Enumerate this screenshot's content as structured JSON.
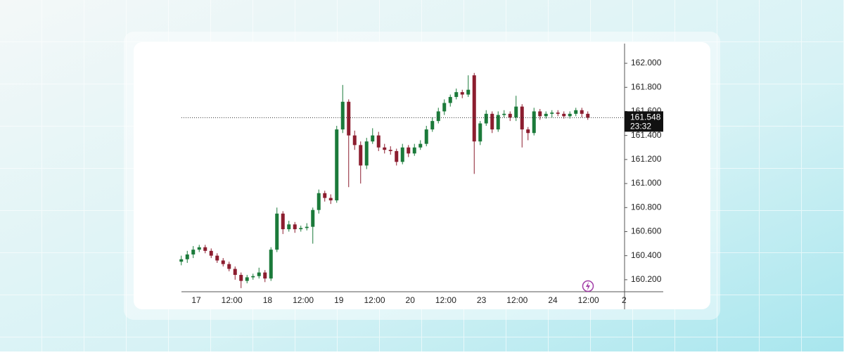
{
  "chart_data": {
    "type": "candlestick",
    "x_labels": [
      "17",
      "12:00",
      "18",
      "12:00",
      "19",
      "12:00",
      "20",
      "12:00",
      "23",
      "12:00",
      "24",
      "12:00",
      "2"
    ],
    "open": [
      160.35,
      160.37,
      160.41,
      160.45,
      160.47,
      160.44,
      160.4,
      160.36,
      160.33,
      160.29,
      160.24,
      160.19,
      160.22,
      160.23,
      160.26,
      160.21,
      160.45,
      160.75,
      160.62,
      160.66,
      160.62,
      160.63,
      160.64,
      160.78,
      160.92,
      160.88,
      160.86,
      161.45,
      161.68,
      161.4,
      161.32,
      161.15,
      161.35,
      161.4,
      161.3,
      161.28,
      161.27,
      161.18,
      161.3,
      161.25,
      161.3,
      161.33,
      161.45,
      161.52,
      161.6,
      161.67,
      161.72,
      161.76,
      161.74,
      161.9,
      161.35,
      161.5,
      161.58,
      161.45,
      161.57,
      161.58,
      161.55,
      161.64,
      161.45,
      161.42,
      161.6,
      161.56,
      161.58,
      161.59,
      161.58,
      161.56,
      161.58,
      161.61,
      161.58
    ],
    "high": [
      160.4,
      160.44,
      160.48,
      160.49,
      160.49,
      160.46,
      160.42,
      160.38,
      160.35,
      160.31,
      160.26,
      160.24,
      160.25,
      160.3,
      160.28,
      160.47,
      160.8,
      160.77,
      160.69,
      160.68,
      160.65,
      160.67,
      160.8,
      160.95,
      160.94,
      160.91,
      161.48,
      161.82,
      161.7,
      161.44,
      161.35,
      161.38,
      161.46,
      161.43,
      161.33,
      161.31,
      161.29,
      161.33,
      161.32,
      161.33,
      161.36,
      161.48,
      161.55,
      161.63,
      161.7,
      161.74,
      161.79,
      161.78,
      161.9,
      161.92,
      161.52,
      161.61,
      161.6,
      161.6,
      161.61,
      161.6,
      161.73,
      161.66,
      161.47,
      161.63,
      161.62,
      161.6,
      161.61,
      161.61,
      161.6,
      161.6,
      161.63,
      161.63,
      161.6
    ],
    "low": [
      160.32,
      160.34,
      160.38,
      160.43,
      160.42,
      160.38,
      160.34,
      160.31,
      160.27,
      160.2,
      160.13,
      160.17,
      160.2,
      160.21,
      160.18,
      160.19,
      160.43,
      160.58,
      160.6,
      160.59,
      160.6,
      160.61,
      160.5,
      160.75,
      160.85,
      160.83,
      160.84,
      161.42,
      160.97,
      161.28,
      161.0,
      161.12,
      161.33,
      161.27,
      161.25,
      161.24,
      161.15,
      161.16,
      161.22,
      161.23,
      161.28,
      161.31,
      161.43,
      161.5,
      161.57,
      161.64,
      161.7,
      161.71,
      161.72,
      161.08,
      161.32,
      161.48,
      161.42,
      161.43,
      161.55,
      161.52,
      161.52,
      161.3,
      161.36,
      161.4,
      161.53,
      161.54,
      161.55,
      161.56,
      161.54,
      161.54,
      161.56,
      161.55,
      161.53
    ],
    "close": [
      160.37,
      160.41,
      160.45,
      160.47,
      160.44,
      160.4,
      160.36,
      160.33,
      160.29,
      160.24,
      160.19,
      160.22,
      160.23,
      160.26,
      160.21,
      160.45,
      160.75,
      160.62,
      160.66,
      160.62,
      160.63,
      160.64,
      160.78,
      160.92,
      160.88,
      160.86,
      161.45,
      161.68,
      161.4,
      161.32,
      161.15,
      161.35,
      161.4,
      161.3,
      161.28,
      161.27,
      161.18,
      161.3,
      161.25,
      161.3,
      161.33,
      161.45,
      161.52,
      161.6,
      161.67,
      161.72,
      161.76,
      161.74,
      161.78,
      161.35,
      161.5,
      161.58,
      161.45,
      161.57,
      161.58,
      161.55,
      161.64,
      161.45,
      161.42,
      161.6,
      161.56,
      161.58,
      161.59,
      161.58,
      161.56,
      161.58,
      161.61,
      161.58,
      161.548
    ],
    "up_color": "#1b7a3a",
    "down_color": "#8c1d2f",
    "ylim": [
      160.1,
      162.164
    ],
    "yticks": [
      {
        "value": 160.2,
        "label": "160.200"
      },
      {
        "value": 160.4,
        "label": "160.400"
      },
      {
        "value": 160.6,
        "label": "160.600"
      },
      {
        "value": 160.8,
        "label": "160.800"
      },
      {
        "value": 161,
        "label": "161.000"
      },
      {
        "value": 161.2,
        "label": "161.200"
      },
      {
        "value": 161.4,
        "label": "161.400"
      },
      {
        "value": 161.6,
        "label": "161.600"
      },
      {
        "value": 161.8,
        "label": "161.800"
      },
      {
        "value": 162,
        "label": "162.000"
      }
    ],
    "last_price": 161.548,
    "countdown": "23:32"
  }
}
